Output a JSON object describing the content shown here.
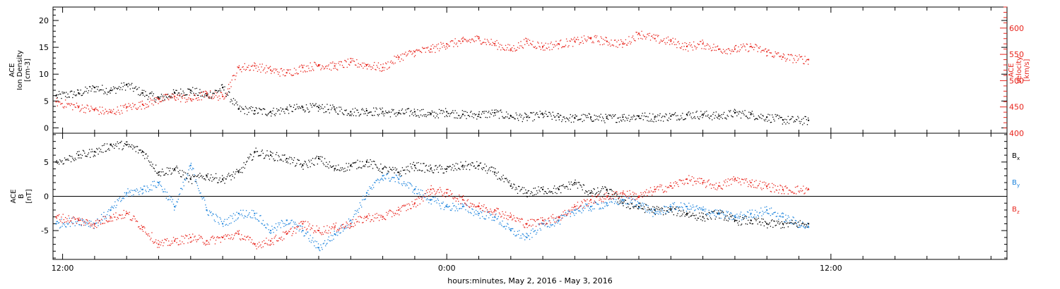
{
  "colors": {
    "black": "#000000",
    "red": "#e8241c",
    "blue": "#1a82dc",
    "axis": "#000000",
    "right_axis": "#e8241c"
  },
  "x_axis": {
    "label": "hours:minutes, May  2, 2016 - May  3, 2016",
    "range_hours": [
      -12.3,
      17.5
    ],
    "major_ticks": [
      {
        "hours": -12,
        "label": "12:00"
      },
      {
        "hours": 0,
        "label": "0:00"
      },
      {
        "hours": 12,
        "label": "12:00"
      }
    ],
    "minor_tick_hours": 1
  },
  "chart_data": [
    {
      "type": "scatter",
      "panel": "top",
      "left_axis": {
        "label_lines": [
          "ACE",
          "Ion Density",
          "[cm-3]"
        ],
        "ylim": [
          -1,
          22.5
        ],
        "tick_values": [
          0,
          5,
          10,
          15,
          20
        ],
        "tick_labels": [
          "0",
          "5",
          "10",
          "15",
          "20"
        ]
      },
      "right_axis": {
        "label_lines": [
          "ACE",
          "Velocity",
          "[km/s]"
        ],
        "ylim": [
          400,
          640
        ],
        "tick_values": [
          400,
          450,
          500,
          550,
          600
        ],
        "tick_labels": [
          "400",
          "450",
          "500",
          "550",
          "600"
        ]
      },
      "series": [
        {
          "key": "density",
          "axis": "left",
          "color": "black",
          "x_hours": [
            -12.2,
            -11.5,
            -11.0,
            -10.5,
            -10.0,
            -9.5,
            -9.0,
            -8.5,
            -8.0,
            -7.5,
            -7.0,
            -6.5,
            -6.0,
            -5.5,
            -5.0,
            -4.5,
            -4.0,
            -3.5,
            -3.0,
            -2.5,
            -2.0,
            -1.5,
            -1.0,
            -0.5,
            0.0,
            0.5,
            1.0,
            1.5,
            2.0,
            2.5,
            3.0,
            3.5,
            4.0,
            4.5,
            5.0,
            5.5,
            6.0,
            6.5,
            7.0,
            7.5,
            8.0,
            8.5,
            9.0,
            9.5,
            10.0,
            10.5,
            11.3
          ],
          "values": [
            6.0,
            6.5,
            7.5,
            7.0,
            8.0,
            6.5,
            5.5,
            6.5,
            7.0,
            6.0,
            7.5,
            3.5,
            3.2,
            3.0,
            3.5,
            3.8,
            3.8,
            3.5,
            3.0,
            3.2,
            3.0,
            2.8,
            3.0,
            2.5,
            3.0,
            2.5,
            2.5,
            2.8,
            2.2,
            2.0,
            2.5,
            2.0,
            1.8,
            2.0,
            1.8,
            2.0,
            2.2,
            2.0,
            2.2,
            2.5,
            2.5,
            2.2,
            2.8,
            2.5,
            2.0,
            1.5,
            1.4
          ]
        },
        {
          "key": "velocity",
          "axis": "right",
          "color": "red",
          "x_hours": [
            -12.2,
            -11.5,
            -11.0,
            -10.5,
            -10.0,
            -9.5,
            -9.0,
            -8.5,
            -8.0,
            -7.5,
            -7.0,
            -6.5,
            -6.0,
            -5.5,
            -5.0,
            -4.5,
            -4.0,
            -3.5,
            -3.0,
            -2.5,
            -2.0,
            -1.5,
            -1.0,
            -0.5,
            0.0,
            0.5,
            1.0,
            1.5,
            2.0,
            2.5,
            3.0,
            3.5,
            4.0,
            4.5,
            5.0,
            5.5,
            6.0,
            6.5,
            7.0,
            7.5,
            8.0,
            8.5,
            9.0,
            9.5,
            10.0,
            10.5,
            11.3
          ],
          "values": [
            460,
            450,
            445,
            440,
            450,
            455,
            465,
            470,
            465,
            475,
            470,
            525,
            528,
            520,
            515,
            525,
            530,
            528,
            535,
            530,
            525,
            545,
            555,
            560,
            570,
            575,
            580,
            570,
            560,
            575,
            565,
            570,
            575,
            580,
            575,
            570,
            590,
            580,
            575,
            565,
            570,
            560,
            560,
            565,
            555,
            545,
            540
          ]
        }
      ]
    },
    {
      "type": "scatter",
      "panel": "bottom",
      "left_axis": {
        "label_lines": [
          "ACE",
          "B",
          "[nT]"
        ],
        "ylim": [
          -9.2,
          9.2
        ],
        "tick_values": [
          -5,
          0,
          5
        ],
        "tick_labels": [
          "-5",
          "0",
          "5"
        ]
      },
      "zero_line": true,
      "legend_placement": "right",
      "series": [
        {
          "key": "bx",
          "name": "Bx",
          "color": "black",
          "x_hours": [
            -12.2,
            -11.5,
            -11.0,
            -10.5,
            -10.0,
            -9.5,
            -9.0,
            -8.5,
            -8.0,
            -7.5,
            -7.0,
            -6.5,
            -6.0,
            -5.5,
            -5.0,
            -4.5,
            -4.0,
            -3.5,
            -3.0,
            -2.5,
            -2.0,
            -1.5,
            -1.0,
            -0.5,
            0.0,
            0.5,
            1.0,
            1.5,
            2.0,
            2.5,
            3.0,
            3.5,
            4.0,
            4.5,
            5.0,
            5.5,
            6.0,
            6.5,
            7.0,
            7.5,
            8.0,
            8.5,
            9.0,
            9.5,
            10.0,
            10.5,
            11.3
          ],
          "values": [
            5.0,
            6.0,
            6.5,
            7.5,
            7.5,
            6.5,
            3.5,
            4.0,
            2.5,
            3.0,
            2.5,
            3.5,
            6.5,
            6.0,
            5.5,
            4.5,
            5.5,
            4.0,
            4.5,
            5.0,
            4.0,
            3.5,
            4.5,
            4.0,
            4.0,
            4.5,
            4.5,
            3.5,
            1.5,
            0.5,
            1.0,
            1.0,
            2.0,
            0.5,
            1.0,
            -1.0,
            -1.5,
            -2.0,
            -2.0,
            -2.5,
            -3.0,
            -2.5,
            -3.5,
            -3.5,
            -4.0,
            -4.0,
            -4.0
          ]
        },
        {
          "key": "by",
          "name": "By",
          "color": "blue",
          "x_hours": [
            -12.2,
            -11.5,
            -11.0,
            -10.5,
            -10.0,
            -9.5,
            -9.0,
            -8.5,
            -8.0,
            -7.5,
            -7.0,
            -6.5,
            -6.0,
            -5.5,
            -5.0,
            -4.5,
            -4.0,
            -3.5,
            -3.0,
            -2.5,
            -2.0,
            -1.5,
            -1.0,
            -0.5,
            0.0,
            0.5,
            1.0,
            1.5,
            2.0,
            2.5,
            3.0,
            3.5,
            4.0,
            4.5,
            5.0,
            5.5,
            6.0,
            6.5,
            7.0,
            7.5,
            8.0,
            8.5,
            9.0,
            9.5,
            10.0,
            10.5,
            11.3
          ],
          "values": [
            -4.0,
            -3.5,
            -4.0,
            -2.0,
            0.5,
            1.0,
            2.0,
            -1.5,
            4.5,
            -2.0,
            -4.0,
            -2.5,
            -2.5,
            -5.0,
            -3.5,
            -5.0,
            -7.5,
            -5.5,
            -3.5,
            0.5,
            3.0,
            2.5,
            1.0,
            -0.5,
            -1.5,
            -1.5,
            -2.5,
            -3.0,
            -5.0,
            -6.0,
            -4.0,
            -3.5,
            -2.0,
            -1.5,
            -1.0,
            -0.5,
            -1.0,
            -2.5,
            -1.5,
            -1.5,
            -2.0,
            -2.5,
            -3.0,
            -2.5,
            -2.0,
            -3.0,
            -4.5
          ]
        },
        {
          "key": "bz",
          "name": "Bz",
          "color": "red",
          "x_hours": [
            -12.2,
            -11.5,
            -11.0,
            -10.5,
            -10.0,
            -9.5,
            -9.0,
            -8.5,
            -8.0,
            -7.5,
            -7.0,
            -6.5,
            -6.0,
            -5.5,
            -5.0,
            -4.5,
            -4.0,
            -3.5,
            -3.0,
            -2.5,
            -2.0,
            -1.5,
            -1.0,
            -0.5,
            0.0,
            0.5,
            1.0,
            1.5,
            2.0,
            2.5,
            3.0,
            3.5,
            4.0,
            4.5,
            5.0,
            5.5,
            6.0,
            6.5,
            7.0,
            7.5,
            8.0,
            8.5,
            9.0,
            9.5,
            10.0,
            10.5,
            11.3
          ],
          "values": [
            -3.0,
            -3.5,
            -4.0,
            -3.0,
            -2.5,
            -4.5,
            -7.0,
            -6.5,
            -6.0,
            -6.5,
            -6.0,
            -5.5,
            -7.0,
            -6.5,
            -5.5,
            -4.0,
            -5.0,
            -4.5,
            -4.0,
            -3.0,
            -3.0,
            -2.0,
            -1.0,
            1.0,
            0.5,
            -0.5,
            -1.5,
            -2.0,
            -3.0,
            -4.0,
            -3.5,
            -3.0,
            -1.5,
            -0.5,
            0.0,
            0.5,
            0.0,
            1.0,
            1.5,
            2.5,
            2.0,
            1.5,
            2.5,
            2.0,
            1.5,
            1.0,
            1.0
          ]
        }
      ]
    }
  ]
}
